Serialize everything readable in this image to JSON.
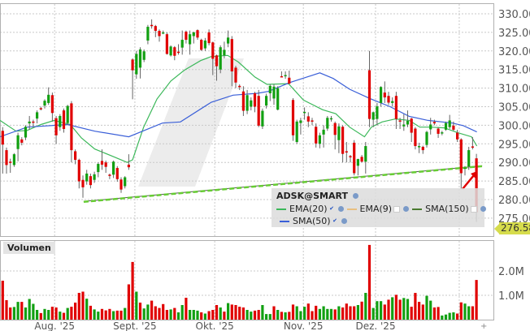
{
  "chart_data": [
    {
      "type": "candlestick",
      "symbol": "ADSK@SMART",
      "y_ticks": [
        "275.00",
        "280.00",
        "285.00",
        "290.00",
        "295.00",
        "300.00",
        "305.00",
        "310.00",
        "315.00",
        "320.00",
        "325.00",
        "330.00"
      ],
      "ylim": [
        270.4,
        332.6
      ],
      "grid": true,
      "last_price": "276.58",
      "x_ticks": [
        {
          "label": "Aug. '25",
          "index": 13.6
        },
        {
          "label": "Sept. '25",
          "index": 34.6
        },
        {
          "label": "Okt. '25",
          "index": 55.5
        },
        {
          "label": "Nov. '25",
          "index": 78.7
        },
        {
          "label": "Dez. '25",
          "index": 97.6
        },
        {
          "label": "",
          "index": 119.5
        }
      ],
      "colors": {
        "up": "#12a012",
        "down": "#e00000",
        "ema20": "#3cb85a",
        "sma50": "#3a5fd8",
        "trendline": "#66cc33",
        "last_price_tag": "#d6dc4c"
      },
      "ohlc": [
        [
          298.5,
          299.5,
          287,
          294.8
        ],
        [
          293.3,
          294,
          287,
          289.3
        ],
        [
          290.2,
          291,
          287.2,
          289.9
        ],
        [
          289.3,
          292.5,
          288.8,
          292.2
        ],
        [
          293.6,
          298,
          290.3,
          297.3
        ],
        [
          296.2,
          296.8,
          294.6,
          295.3
        ],
        [
          296.7,
          300,
          296,
          299.6
        ],
        [
          300.5,
          302.5,
          298.8,
          301
        ],
        [
          301,
          301.5,
          299.5,
          300.8
        ],
        [
          301.8,
          304,
          300.5,
          303.5
        ],
        [
          304.6,
          305,
          304,
          304.4
        ],
        [
          305.3,
          307,
          304.5,
          306.6
        ],
        [
          306,
          310.2,
          305.5,
          308.2
        ],
        [
          308.1,
          308.8,
          301,
          303.3
        ],
        [
          301.9,
          302.5,
          295,
          297.3
        ],
        [
          299.5,
          303,
          298.5,
          302.5
        ],
        [
          304,
          304.5,
          298,
          299
        ],
        [
          300.6,
          305.5,
          300,
          305.2
        ],
        [
          305.9,
          306.5,
          290,
          293.3
        ],
        [
          293,
          293.5,
          289.5,
          290.7
        ],
        [
          290.7,
          291,
          283,
          284.9
        ],
        [
          285.3,
          286.5,
          280.5,
          283.3
        ],
        [
          284.9,
          288,
          284,
          287
        ],
        [
          286.3,
          287,
          283,
          283.9
        ],
        [
          285.3,
          287.5,
          284.5,
          286.8
        ],
        [
          287.4,
          290,
          286,
          289.6
        ],
        [
          290.4,
          293.5,
          288,
          289.4
        ],
        [
          290,
          290.5,
          287.2,
          288.8
        ],
        [
          286.7,
          287,
          285.5,
          286.5
        ],
        [
          286.7,
          290.5,
          285.8,
          290.2
        ],
        [
          288.5,
          289,
          284.8,
          285.5
        ],
        [
          285.4,
          286,
          281.8,
          282.7
        ],
        [
          283.6,
          286.3,
          283,
          286
        ],
        [
          289.4,
          292.2,
          288,
          288.7
        ],
        [
          317.7,
          318,
          307,
          314.8
        ],
        [
          313.7,
          320,
          312.5,
          319.2
        ],
        [
          315.5,
          321,
          312.6,
          320.4
        ],
        [
          317.6,
          320.4,
          317,
          319.9
        ],
        [
          322.8,
          327,
          321.8,
          326.5
        ],
        [
          327,
          328.5,
          326,
          326.7
        ],
        [
          326.7,
          327,
          323.7,
          325.4
        ],
        [
          325.4,
          325.8,
          322.5,
          324
        ],
        [
          325,
          325.5,
          324.5,
          325
        ],
        [
          324.5,
          325,
          319,
          319.2
        ],
        [
          318.8,
          321.5,
          318.5,
          321.2
        ],
        [
          321,
          321.3,
          317.5,
          318.7
        ],
        [
          319.8,
          321.8,
          319,
          319.7
        ],
        [
          320.9,
          325.5,
          319,
          323
        ],
        [
          325.2,
          325.5,
          322,
          323
        ],
        [
          321.8,
          325.5,
          319,
          324.5
        ],
        [
          324,
          325.2,
          322,
          325
        ],
        [
          325.6,
          325.8,
          323,
          323.6
        ],
        [
          323,
          323.3,
          320,
          320.3
        ],
        [
          320.7,
          323.5,
          320,
          322.8
        ],
        [
          325,
          325.8,
          321.5,
          322.1
        ],
        [
          322.3,
          322.5,
          313.5,
          317.9
        ],
        [
          318.8,
          319,
          312,
          315.9
        ],
        [
          315,
          321.5,
          314,
          321
        ],
        [
          318.8,
          322.5,
          318,
          320.3
        ],
        [
          322,
          325.5,
          321,
          323.6
        ],
        [
          323.2,
          324,
          310.5,
          314.5
        ],
        [
          315.5,
          316,
          310,
          311.5
        ],
        [
          310.6,
          311,
          309.5,
          310.5
        ],
        [
          309.1,
          310.5,
          302.5,
          303.9
        ],
        [
          303.9,
          309.5,
          303,
          308.1
        ],
        [
          305,
          307.5,
          304,
          306.7
        ],
        [
          308.6,
          309,
          303.5,
          305
        ],
        [
          307.9,
          309.5,
          299.5,
          299.9
        ],
        [
          299.7,
          304.5,
          299,
          303.9
        ],
        [
          305.3,
          308.5,
          304.5,
          307.9
        ],
        [
          308.6,
          311,
          306.5,
          310.6
        ],
        [
          307.2,
          311,
          305.5,
          310.4
        ],
        [
          304.2,
          310.5,
          304,
          310
        ],
        [
          313.2,
          314.5,
          313,
          313
        ],
        [
          313.3,
          314.5,
          312.5,
          313.5
        ],
        [
          312.8,
          314.7,
          311,
          311.2
        ],
        [
          306.8,
          307.3,
          295.8,
          297.3
        ],
        [
          295.5,
          301.5,
          295,
          301
        ],
        [
          300.6,
          302,
          297.5,
          301.3
        ],
        [
          303.3,
          304.8,
          301.5,
          303.6
        ],
        [
          302.4,
          303.5,
          299.5,
          301
        ],
        [
          301.3,
          302,
          300,
          301.2
        ],
        [
          299.6,
          300.5,
          294,
          295.1
        ],
        [
          295,
          298,
          293.8,
          297.3
        ],
        [
          297.5,
          300,
          294,
          298.8
        ],
        [
          299.1,
          302.5,
          298.5,
          302
        ],
        [
          301.8,
          302.5,
          301,
          301.9
        ],
        [
          300.6,
          301,
          293.5,
          297.4
        ],
        [
          296,
          300.5,
          292.5,
          299.7
        ],
        [
          299.6,
          300,
          290,
          292.3
        ],
        [
          293,
          295.5,
          290,
          292.8
        ],
        [
          291.7,
          292,
          290,
          291.5
        ],
        [
          295.3,
          296,
          286.5,
          287.1
        ],
        [
          289.1,
          291,
          286.5,
          290.9
        ],
        [
          291.5,
          292,
          290,
          290.2
        ],
        [
          290.2,
          295.5,
          287,
          294.4
        ],
        [
          314.8,
          320,
          299.5,
          301.7
        ],
        [
          301.5,
          303.7,
          299.5,
          303.5
        ],
        [
          301.7,
          306,
          300,
          305.1
        ],
        [
          306,
          310.5,
          305,
          310.3
        ],
        [
          308.8,
          311.8,
          306,
          307.5
        ],
        [
          307.9,
          309,
          305.5,
          306.1
        ],
        [
          306,
          307.5,
          305,
          306.5
        ],
        [
          307.9,
          309,
          299,
          301.7
        ],
        [
          301.3,
          302,
          299,
          301.2
        ],
        [
          299.7,
          303,
          298.5,
          300.2
        ],
        [
          300.2,
          304,
          299.5,
          301.2
        ],
        [
          301.8,
          302,
          295.5,
          298
        ],
        [
          299.1,
          299.5,
          293.5,
          294.4
        ],
        [
          294.3,
          295.3,
          292.5,
          294.4
        ],
        [
          294.2,
          294.5,
          292.3,
          293.3
        ],
        [
          294.7,
          298.5,
          294,
          298.2
        ],
        [
          298.9,
          302,
          297.5,
          300.2
        ],
        [
          300.9,
          301.5,
          300,
          300.5
        ],
        [
          299.1,
          299.5,
          296.6,
          297.7
        ],
        [
          297.9,
          298.5,
          297.3,
          298.1
        ],
        [
          298.8,
          301,
          298.5,
          300.6
        ],
        [
          299.5,
          302.8,
          299,
          301.3
        ],
        [
          299.9,
          301,
          298.5,
          298.8
        ],
        [
          298,
          298.8,
          295.5,
          296.2
        ],
        [
          296.2,
          296.5,
          282.8,
          287.1
        ],
        [
          288.3,
          289,
          286.5,
          288.6
        ],
        [
          288.9,
          294.2,
          288,
          293.3
        ],
        [
          294.3,
          296.8,
          293.5,
          294.1
        ],
        [
          291.1,
          292.3,
          274,
          276.58
        ]
      ],
      "indicators": [
        {
          "name": "EMA(20)",
          "shown": true,
          "points": [
            [
              -0.7,
              301.3
            ],
            [
              3.5,
              298.4
            ],
            [
              6.4,
              298.6
            ],
            [
              10,
              300.2
            ],
            [
              13.5,
              301.3
            ],
            [
              17.7,
              300.2
            ],
            [
              20.6,
              296.6
            ],
            [
              24.1,
              293.6
            ],
            [
              29.1,
              291.5
            ],
            [
              32.6,
              290
            ],
            [
              34,
              290.7
            ],
            [
              36.9,
              299.5
            ],
            [
              40.4,
              307.1
            ],
            [
              44,
              311.9
            ],
            [
              47.5,
              314.8
            ],
            [
              51.8,
              317.4
            ],
            [
              54.6,
              318.5
            ],
            [
              58.9,
              318.8
            ],
            [
              61.7,
              317
            ],
            [
              66,
              313
            ],
            [
              69.2,
              311
            ],
            [
              74.8,
              311.2
            ],
            [
              78.7,
              306.8
            ],
            [
              83.7,
              304.2
            ],
            [
              87.2,
              303.1
            ],
            [
              90.8,
              299.5
            ],
            [
              94.7,
              296.9
            ],
            [
              96.5,
              299.5
            ],
            [
              99.3,
              300.9
            ],
            [
              102.8,
              301.7
            ],
            [
              106.4,
              301.3
            ],
            [
              109.2,
              299.5
            ],
            [
              112,
              299.5
            ],
            [
              115.6,
              299.3
            ],
            [
              119.1,
              298
            ],
            [
              122.7,
              296.9
            ],
            [
              124.1,
              294.4
            ]
          ]
        },
        {
          "name": "EMA(9)",
          "shown": false
        },
        {
          "name": "SMA(150)",
          "shown": false
        },
        {
          "name": "SMA(50)",
          "shown": true,
          "points": [
            [
              -0.7,
              296.9
            ],
            [
              6.4,
              299.5
            ],
            [
              17,
              300.2
            ],
            [
              24.1,
              298.4
            ],
            [
              33,
              296.9
            ],
            [
              41.8,
              300.6
            ],
            [
              46.5,
              300.9
            ],
            [
              54.6,
              306.2
            ],
            [
              60.3,
              308.1
            ],
            [
              66.7,
              308.6
            ],
            [
              69.5,
              309.1
            ],
            [
              75.2,
              311.5
            ],
            [
              83,
              314.1
            ],
            [
              86.5,
              312.6
            ],
            [
              90.8,
              309.7
            ],
            [
              96.1,
              307.2
            ],
            [
              101.4,
              305
            ],
            [
              106.4,
              302.4
            ],
            [
              111.3,
              301.3
            ],
            [
              117.7,
              300.6
            ],
            [
              120.6,
              299.9
            ],
            [
              124.1,
              298.2
            ]
          ]
        }
      ],
      "trendline": [
        [
          21.2,
          279.5
        ],
        [
          125.5,
          289.1
        ]
      ]
    },
    {
      "type": "bar",
      "title": "Volumen",
      "y_ticks": [
        "1.0M",
        "2.0M"
      ],
      "unit": "M",
      "values": [
        1.6,
        0.8,
        0.5,
        0.52,
        0.73,
        0.73,
        0.5,
        0.85,
        0.65,
        0.4,
        0.27,
        0.44,
        0.4,
        0.53,
        0.5,
        0.33,
        0.28,
        0.48,
        0.53,
        0.7,
        1.1,
        1.15,
        0.86,
        0.57,
        0.42,
        0.33,
        0.44,
        0.38,
        0.44,
        0.35,
        0.37,
        0.37,
        0.48,
        1.45,
        2.37,
        1.15,
        0.7,
        0.46,
        0.62,
        0.78,
        0.55,
        0.48,
        0.64,
        0.4,
        0.42,
        0.48,
        0.3,
        0.6,
        0.9,
        0.4,
        0.4,
        0.37,
        0.3,
        0.25,
        0.35,
        0.4,
        0.6,
        0.5,
        0.33,
        0.68,
        0.62,
        0.6,
        0.53,
        0.5,
        0.4,
        0.33,
        0.37,
        0.4,
        0.6,
        0.23,
        0.23,
        0.55,
        0.4,
        0.32,
        0.3,
        0.32,
        0.62,
        0.55,
        0.35,
        0.53,
        0.66,
        0.35,
        0.57,
        0.44,
        0.55,
        0.44,
        0.44,
        0.42,
        0.55,
        0.5,
        0.66,
        0.55,
        0.55,
        0.6,
        0.74,
        1.1,
        3.07,
        0.48,
        0.76,
        0.76,
        0.62,
        0.82,
        0.92,
        1.02,
        0.82,
        0.89,
        0.85,
        0.53,
        1.1,
        0.73,
        0.62,
        0.98,
        0.78,
        0.5,
        0.52,
        0.17,
        0.21,
        0.28,
        0.3,
        0.25,
        0.71,
        0.66,
        0.55,
        0.55,
        1.63
      ],
      "colors": [
        "r",
        "r",
        "r",
        "g",
        "g",
        "r",
        "g",
        "g",
        "g",
        "g",
        "r",
        "g",
        "g",
        "r",
        "r",
        "g",
        "r",
        "g",
        "r",
        "r",
        "r",
        "r",
        "g",
        "r",
        "g",
        "g",
        "r",
        "r",
        "r",
        "g",
        "r",
        "r",
        "g",
        "r",
        "r",
        "g",
        "r",
        "g",
        "g",
        "r",
        "r",
        "r",
        "r",
        "r",
        "g",
        "r",
        "g",
        "g",
        "r",
        "g",
        "g",
        "g",
        "r",
        "g",
        "r",
        "r",
        "r",
        "g",
        "r",
        "g",
        "r",
        "r",
        "r",
        "r",
        "g",
        "g",
        "r",
        "r",
        "g",
        "g",
        "g",
        "r",
        "g",
        "r",
        "g",
        "r",
        "r",
        "g",
        "g",
        "g",
        "r",
        "r",
        "r",
        "g",
        "g",
        "g",
        "g",
        "r",
        "g",
        "r",
        "r",
        "r",
        "r",
        "g",
        "r",
        "g",
        "r",
        "g",
        "g",
        "g",
        "r",
        "r",
        "g",
        "r",
        "r",
        "g",
        "g",
        "r",
        "r",
        "r",
        "r",
        "g",
        "g",
        "r",
        "r",
        "g",
        "g",
        "g",
        "g",
        "r",
        "r",
        "g",
        "g",
        "r",
        "r"
      ]
    }
  ]
}
